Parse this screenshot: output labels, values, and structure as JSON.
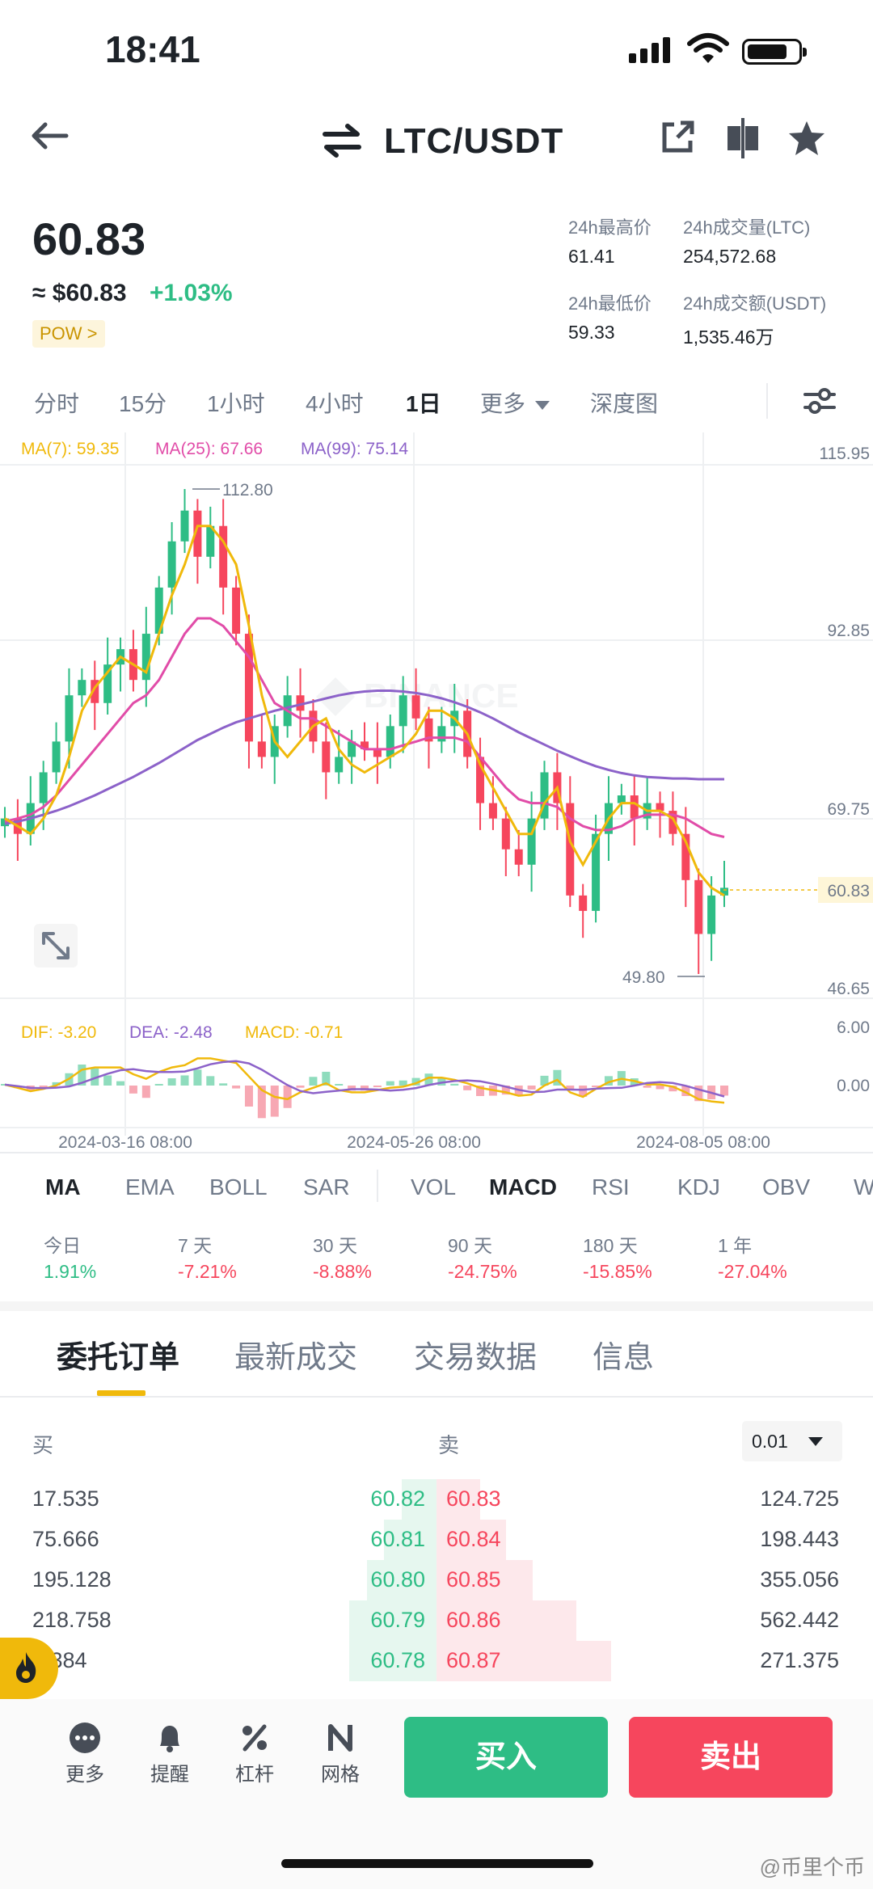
{
  "status_bar": {
    "time": "18:41"
  },
  "header": {
    "title": "LTC/USDT"
  },
  "ticker": {
    "last_price": "60.83",
    "fiat_price": "≈ $60.83",
    "change_pct": "+1.03%",
    "tag": "POW >",
    "high_label": "24h最高价",
    "high": "61.41",
    "low_label": "24h最低价",
    "low": "59.33",
    "vol_base_label": "24h成交量(LTC)",
    "vol_base": "254,572.68",
    "vol_quote_label": "24h成交额(USDT)",
    "vol_quote": "1,535.46万"
  },
  "intervals": [
    "分时",
    "15分",
    "1小时",
    "4小时",
    "1日",
    "更多",
    "深度图"
  ],
  "chart_data": {
    "type": "candlestick",
    "price_axis": [
      "115.95",
      "92.85",
      "69.75",
      "46.65"
    ],
    "last_price_label": "60.83",
    "high_marker": "112.80",
    "low_marker": "49.80",
    "ma_legend": {
      "ma7": "MA(7): 59.35",
      "ma25": "MA(25): 67.66",
      "ma99": "MA(99): 75.14"
    },
    "macd_legend": {
      "dif": "DIF: -3.20",
      "dea": "DEA: -2.48",
      "macd": "MACD: -0.71"
    },
    "macd_axis": [
      "6.00",
      "0.00"
    ],
    "x_labels": [
      "2024-03-16 08:00",
      "2024-05-26 08:00",
      "2024-08-05 08:00"
    ],
    "ylim": [
      46.65,
      115.95
    ],
    "ma7": [
      70,
      69,
      68,
      70,
      73,
      78,
      84,
      87,
      89,
      91,
      90,
      89,
      94,
      99,
      103,
      108,
      108,
      106,
      103,
      95,
      86,
      80,
      78,
      80,
      82,
      83,
      79,
      77,
      76,
      77,
      78,
      79,
      81,
      84,
      84,
      83,
      81,
      77,
      74,
      71,
      68,
      68,
      72,
      74,
      67,
      64,
      67,
      70,
      72,
      72,
      71,
      71,
      70,
      67,
      63,
      61,
      60
    ],
    "ma25": [
      69.6,
      70,
      70.5,
      71.5,
      73,
      75,
      77,
      79,
      81,
      83,
      85,
      86,
      88,
      91,
      94,
      96,
      96,
      95,
      93,
      91,
      88,
      85,
      84,
      83,
      83,
      82,
      81,
      80,
      79,
      79,
      79,
      79.5,
      80,
      80.5,
      80.5,
      80.5,
      80,
      78,
      76,
      74,
      72.5,
      72,
      72,
      71.5,
      70,
      69,
      68.5,
      68.5,
      69,
      70,
      70.5,
      70.5,
      70.5,
      70,
      69,
      68,
      67.6
    ],
    "ma99": [
      69.3,
      69.6,
      70,
      70.5,
      71,
      71.6,
      72.3,
      73,
      73.8,
      74.6,
      75.4,
      76.3,
      77.2,
      78.2,
      79.2,
      80.2,
      81,
      81.8,
      82.5,
      83,
      83.5,
      84,
      84.4,
      84.8,
      85.2,
      85.6,
      86,
      86.3,
      86.5,
      86.6,
      86.6,
      86.5,
      86.3,
      86,
      85.6,
      85.1,
      84.5,
      83.8,
      83,
      82.1,
      81.2,
      80.4,
      79.6,
      78.8,
      78.1,
      77.4,
      76.8,
      76.3,
      75.9,
      75.6,
      75.4,
      75.3,
      75.2,
      75.2,
      75.1,
      75.1,
      75.1
    ],
    "closes": [
      70,
      68,
      72,
      76,
      80,
      86,
      88,
      85,
      90,
      92,
      88,
      94,
      100,
      106,
      110,
      104,
      108,
      100,
      94,
      80,
      78,
      82,
      86,
      84,
      80,
      76,
      78,
      80,
      79,
      78,
      82,
      86,
      83,
      80,
      82,
      84,
      78,
      72,
      70,
      66,
      64,
      70,
      76,
      72,
      60,
      58,
      68,
      72,
      73,
      70,
      72,
      71,
      68,
      62,
      55,
      60,
      61
    ]
  },
  "indicators": [
    "MA",
    "EMA",
    "BOLL",
    "SAR",
    "VOL",
    "MACD",
    "RSI",
    "KDJ",
    "OBV",
    "WR"
  ],
  "performance": [
    {
      "label": "今日",
      "value": "1.91%",
      "up": true
    },
    {
      "label": "7 天",
      "value": "-7.21%",
      "up": false
    },
    {
      "label": "30 天",
      "value": "-8.88%",
      "up": false
    },
    {
      "label": "90 天",
      "value": "-24.75%",
      "up": false
    },
    {
      "label": "180 天",
      "value": "-15.85%",
      "up": false
    },
    {
      "label": "1 年",
      "value": "-27.04%",
      "up": false
    }
  ],
  "tabs": [
    "委托订单",
    "最新成交",
    "交易数据",
    "信息"
  ],
  "orderbook": {
    "buy_label": "买",
    "sell_label": "卖",
    "precision": "0.01",
    "rows": [
      {
        "bid_qty": "17.535",
        "bid": "60.82",
        "ask": "60.83",
        "ask_qty": "124.725",
        "bid_depth": 0.04,
        "ask_depth": 0.05
      },
      {
        "bid_qty": "75.666",
        "bid": "60.81",
        "ask": "60.84",
        "ask_qty": "198.443",
        "bid_depth": 0.06,
        "ask_depth": 0.08
      },
      {
        "bid_qty": "195.128",
        "bid": "60.80",
        "ask": "60.85",
        "ask_qty": "355.056",
        "bid_depth": 0.08,
        "ask_depth": 0.11
      },
      {
        "bid_qty": "218.758",
        "bid": "60.79",
        "ask": "60.86",
        "ask_qty": "562.442",
        "bid_depth": 0.1,
        "ask_depth": 0.16
      },
      {
        "bid_qty": "1.384",
        "bid": "60.78",
        "ask": "60.87",
        "ask_qty": "271.375",
        "bid_depth": 0.1,
        "ask_depth": 0.2
      }
    ]
  },
  "bottom_bar": {
    "tools": [
      "更多",
      "提醒",
      "杠杆",
      "网格"
    ],
    "buy": "买入",
    "sell": "卖出"
  },
  "watermark": "@币里个币",
  "colors": {
    "up": "#2ebd85",
    "down": "#f6465d",
    "ma7": "#f0b90b",
    "ma25": "#e14ca8",
    "ma99": "#8c62c9"
  }
}
